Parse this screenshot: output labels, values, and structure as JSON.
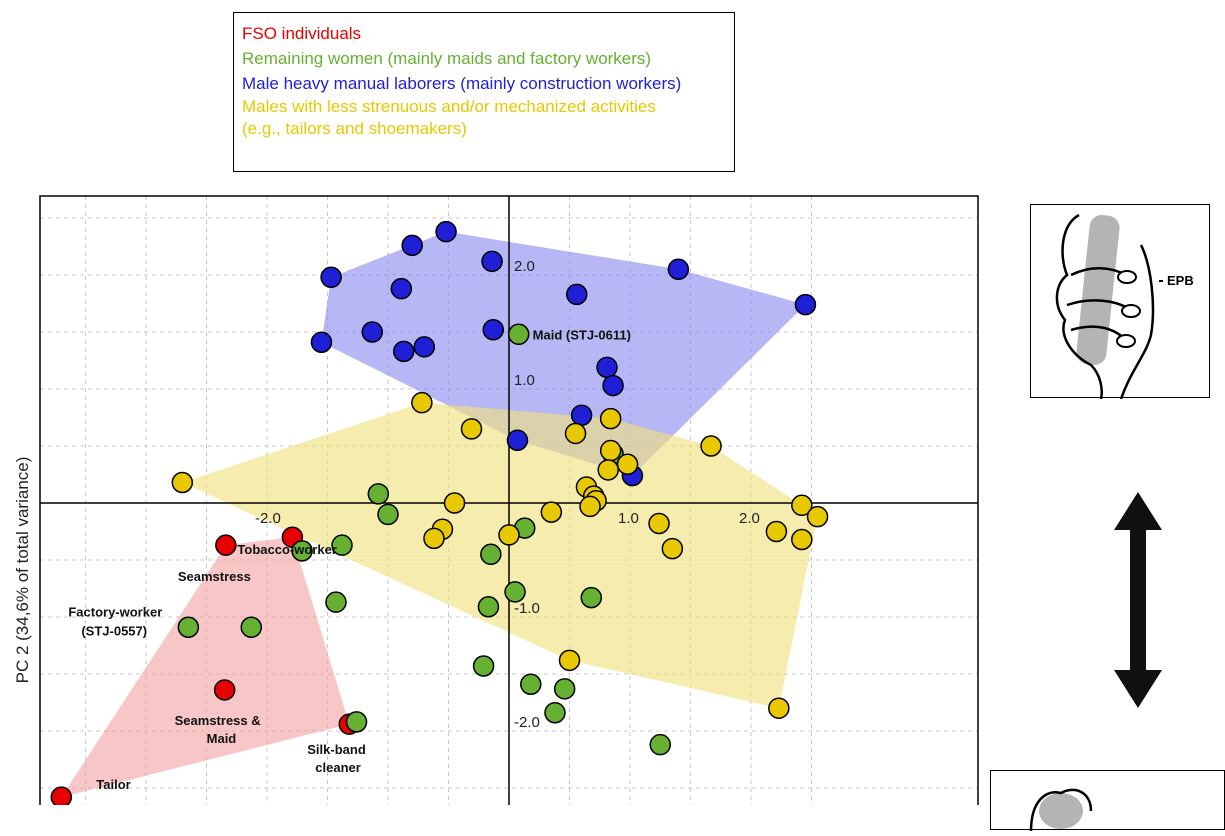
{
  "legend": {
    "items": [
      {
        "label": "FSO individuals",
        "color": "#e60000"
      },
      {
        "label": "Remaining women (mainly maids and factory workers)",
        "color": "#66b032"
      },
      {
        "label": "Male heavy manual laborers (mainly construction workers)",
        "color": "#1f1fd6"
      },
      {
        "label": "Males with less strenuous and/or mechanized activities",
        "color": "#e8c800"
      },
      {
        "label": "(e.g., tailors and shoemakers)",
        "color": "#e8c800"
      }
    ]
  },
  "ylabel_text": "PC 2 (34,6% of total variance)",
  "inset_label": "EPB",
  "chart_data": {
    "type": "scatter",
    "xlabel": "",
    "ylabel": "PC 2 (34,6% of total variance)",
    "xlim": [
      -3.9,
      2.55
    ],
    "ylim": [
      -2.55,
      2.7
    ],
    "grid": true,
    "x_ticks": [
      {
        "value": -2.0,
        "label": "-2.0"
      },
      {
        "value": 1.0,
        "label": "1.0"
      },
      {
        "value": 2.0,
        "label": "2.0"
      }
    ],
    "y_ticks": [
      {
        "value": 2.0,
        "label": "2.0"
      },
      {
        "value": 1.0,
        "label": "1.0"
      },
      {
        "value": -1.0,
        "label": "-1.0"
      },
      {
        "value": -2.0,
        "label": "-2.0"
      }
    ],
    "series": [
      {
        "name": "FSO individuals",
        "color": "#e60000",
        "hull_color": "#f2a4a4",
        "points": [
          [
            -2.34,
            -0.37
          ],
          [
            -1.79,
            -0.3
          ],
          [
            -2.35,
            -1.64
          ],
          [
            -1.32,
            -1.94
          ],
          [
            -3.7,
            -2.58
          ]
        ]
      },
      {
        "name": "Remaining women (mainly maids and factory workers)",
        "color": "#66b032",
        "hull_color": null,
        "points": [
          [
            0.08,
            1.48
          ],
          [
            -1.08,
            0.08
          ],
          [
            -1.0,
            -0.1
          ],
          [
            -1.71,
            -0.42
          ],
          [
            -1.38,
            -0.37
          ],
          [
            -2.65,
            -1.09
          ],
          [
            -2.13,
            -1.09
          ],
          [
            -1.43,
            -0.87
          ],
          [
            -1.26,
            -1.92
          ],
          [
            0.13,
            -0.22
          ],
          [
            -0.15,
            -0.45
          ],
          [
            0.05,
            -0.78
          ],
          [
            -0.17,
            -0.91
          ],
          [
            0.68,
            -0.83
          ],
          [
            -0.21,
            -1.43
          ],
          [
            0.18,
            -1.59
          ],
          [
            0.46,
            -1.63
          ],
          [
            0.38,
            -1.84
          ],
          [
            1.25,
            -2.12
          ],
          [
            0.86,
            0.43
          ]
        ]
      },
      {
        "name": "Male heavy manual laborers (mainly construction workers)",
        "color": "#1f1fd6",
        "hull_color": "#8b8bf0",
        "points": [
          [
            -0.52,
            2.38
          ],
          [
            -0.8,
            2.26
          ],
          [
            -0.14,
            2.12
          ],
          [
            1.4,
            2.05
          ],
          [
            2.45,
            1.74
          ],
          [
            -1.47,
            1.98
          ],
          [
            -0.89,
            1.88
          ],
          [
            0.56,
            1.83
          ],
          [
            -1.13,
            1.5
          ],
          [
            -1.55,
            1.41
          ],
          [
            -0.13,
            1.52
          ],
          [
            -0.87,
            1.33
          ],
          [
            -0.7,
            1.37
          ],
          [
            0.81,
            1.19
          ],
          [
            0.86,
            1.03
          ],
          [
            0.6,
            0.77
          ],
          [
            0.07,
            0.55
          ],
          [
            1.02,
            0.24
          ]
        ]
      },
      {
        "name": "Males with less strenuous and/or mechanized activities",
        "color": "#e8c800",
        "hull_color": "#f0e07a",
        "points": [
          [
            -0.72,
            0.88
          ],
          [
            -0.31,
            0.65
          ],
          [
            0.55,
            0.61
          ],
          [
            0.84,
            0.74
          ],
          [
            0.84,
            0.46
          ],
          [
            1.67,
            0.5
          ],
          [
            0.82,
            0.29
          ],
          [
            0.98,
            0.34
          ],
          [
            -2.7,
            0.18
          ],
          [
            0.64,
            0.14
          ],
          [
            0.7,
            0.06
          ],
          [
            0.72,
            0.02
          ],
          [
            -0.45,
            0.0
          ],
          [
            0.35,
            -0.08
          ],
          [
            0.67,
            -0.03
          ],
          [
            -0.55,
            -0.23
          ],
          [
            0.0,
            -0.28
          ],
          [
            -0.62,
            -0.31
          ],
          [
            1.24,
            -0.18
          ],
          [
            1.35,
            -0.4
          ],
          [
            2.42,
            -0.02
          ],
          [
            2.55,
            -0.12
          ],
          [
            2.21,
            -0.25
          ],
          [
            2.42,
            -0.32
          ],
          [
            0.5,
            -1.38
          ],
          [
            2.23,
            -1.8
          ]
        ]
      }
    ],
    "annotations": [
      {
        "text": "Maid (STJ-0611)",
        "x": 0.08,
        "y": 1.48
      },
      {
        "text": "Tobacco-worker",
        "x": -1.79,
        "y": -0.3
      },
      {
        "text": "Seamstress",
        "x": -2.34,
        "y": -0.37
      },
      {
        "text": "Factory-worker",
        "x": -2.65,
        "y": -1.09
      },
      {
        "text": "(STJ-0557)",
        "x": -2.65,
        "y": -1.09
      },
      {
        "text": "Seamstress &",
        "x": -2.35,
        "y": -1.64
      },
      {
        "text": "Maid",
        "x": -2.35,
        "y": -1.64
      },
      {
        "text": "Silk-band",
        "x": -1.32,
        "y": -1.94
      },
      {
        "text": "cleaner",
        "x": -1.32,
        "y": -1.94
      },
      {
        "text": "Tailor",
        "x": -3.7,
        "y": -2.58
      }
    ]
  }
}
